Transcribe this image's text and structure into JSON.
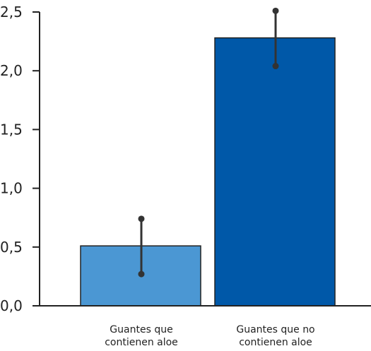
{
  "chart_data": {
    "type": "bar",
    "title": "",
    "xlabel": "",
    "ylabel": "",
    "ylim": [
      0,
      2.5
    ],
    "yticks": [
      "0,0",
      "0,5",
      "1,0",
      "1,5",
      "2,0",
      "2,5"
    ],
    "ytick_values": [
      0,
      0.5,
      1.0,
      1.5,
      2.0,
      2.5
    ],
    "grid": false,
    "categories": [
      [
        "Guantes que",
        "contienen aloe"
      ],
      [
        "Guantes que no",
        "contienen aloe"
      ]
    ],
    "values": [
      0.51,
      2.28
    ],
    "error_low": [
      0.27,
      2.04
    ],
    "error_high": [
      0.74,
      2.51
    ],
    "colors": [
      "#4b97d3",
      "#0058a8"
    ]
  }
}
